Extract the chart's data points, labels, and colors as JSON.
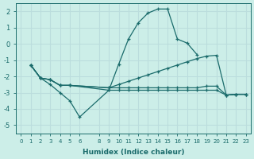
{
  "xlabel": "Humidex (Indice chaleur)",
  "bg_color": "#cceee8",
  "grid_color": "#bbdddd",
  "line_color": "#1a6b6b",
  "xlim": [
    -0.5,
    23.5
  ],
  "ylim": [
    -5.5,
    2.5
  ],
  "xticks": [
    0,
    1,
    2,
    3,
    4,
    5,
    6,
    8,
    9,
    10,
    11,
    12,
    13,
    14,
    15,
    16,
    17,
    18,
    19,
    20,
    21,
    22,
    23
  ],
  "yticks": [
    -5,
    -4,
    -3,
    -2,
    -1,
    0,
    1,
    2
  ],
  "curves": [
    {
      "x": [
        1,
        2,
        3,
        4,
        5,
        6,
        9,
        10,
        11,
        12,
        13,
        14,
        15,
        16,
        17,
        18
      ],
      "y": [
        -1.3,
        -2.1,
        -2.5,
        -3.0,
        -3.5,
        -4.5,
        -2.85,
        -1.25,
        0.3,
        1.3,
        1.9,
        2.15,
        2.15,
        0.3,
        0.05,
        -0.65
      ]
    },
    {
      "x": [
        1,
        2,
        3,
        4,
        5,
        9,
        10,
        11,
        12,
        13,
        14,
        15,
        16,
        17,
        18,
        19,
        20,
        21,
        22,
        23
      ],
      "y": [
        -1.3,
        -2.1,
        -2.2,
        -2.55,
        -2.55,
        -2.7,
        -2.7,
        -2.7,
        -2.7,
        -2.7,
        -2.7,
        -2.7,
        -2.7,
        -2.7,
        -2.7,
        -2.6,
        -2.6,
        -3.15,
        -3.1,
        -3.1
      ]
    },
    {
      "x": [
        1,
        2,
        3,
        4,
        5,
        9,
        10,
        11,
        12,
        13,
        14,
        15,
        16,
        17,
        18,
        19,
        20,
        21,
        22,
        23
      ],
      "y": [
        -1.3,
        -2.1,
        -2.2,
        -2.55,
        -2.55,
        -2.85,
        -2.85,
        -2.85,
        -2.85,
        -2.85,
        -2.85,
        -2.85,
        -2.85,
        -2.85,
        -2.85,
        -2.85,
        -2.85,
        -3.15,
        -3.1,
        -3.1
      ]
    },
    {
      "x": [
        1,
        2,
        3,
        4,
        5,
        9,
        10,
        11,
        12,
        13,
        14,
        15,
        16,
        17,
        18,
        19,
        20,
        21,
        22,
        23
      ],
      "y": [
        -1.3,
        -2.1,
        -2.2,
        -2.55,
        -2.55,
        -2.7,
        -2.5,
        -2.3,
        -2.1,
        -1.9,
        -1.7,
        -1.5,
        -1.3,
        -1.1,
        -0.9,
        -0.75,
        -0.7,
        -3.15,
        -3.1,
        -3.1
      ]
    }
  ]
}
